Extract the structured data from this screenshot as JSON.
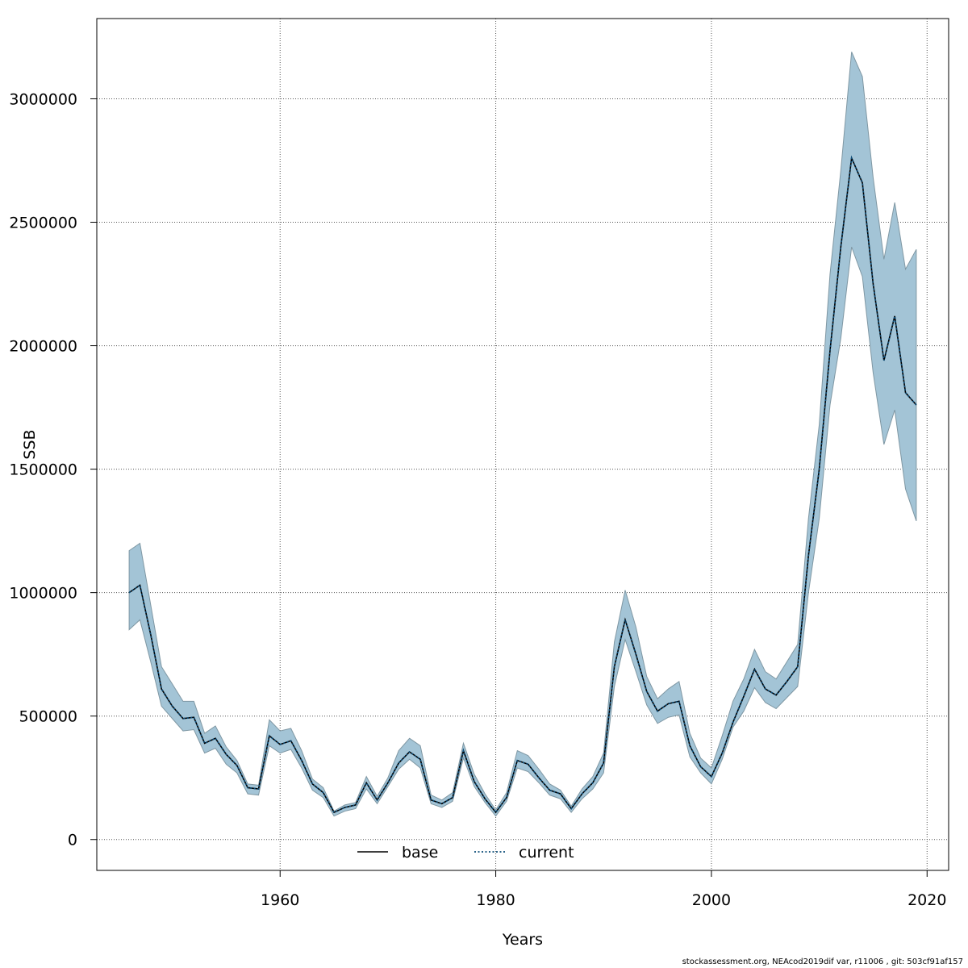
{
  "footer": "stockassessment.org, NEAcod2019dif  var, r11006 , git: 503cf91af157",
  "chart_data": {
    "type": "line",
    "title": "",
    "xlabel": "Years",
    "ylabel": "SSB",
    "xlim": [
      1943,
      2022
    ],
    "ylim": [
      -125000,
      3325000
    ],
    "x_ticks": [
      1960,
      1980,
      2000,
      2020
    ],
    "y_ticks": [
      0,
      500000,
      1000000,
      1500000,
      2000000,
      2500000,
      3000000
    ],
    "y_tick_labels": [
      "0",
      "500000",
      "1000000",
      "1500000",
      "2000000",
      "2500000",
      "3000000"
    ],
    "grid": true,
    "legend": {
      "position": "bottom-center",
      "entries": [
        "base",
        "current"
      ]
    },
    "colors": {
      "band": "#a3c4d6",
      "band_edge": "#7f97a3",
      "base": "#000000",
      "current": "#0f4f7a"
    },
    "x": [
      1946,
      1947,
      1948,
      1949,
      1950,
      1951,
      1952,
      1953,
      1954,
      1955,
      1956,
      1957,
      1958,
      1959,
      1960,
      1961,
      1962,
      1963,
      1964,
      1965,
      1966,
      1967,
      1968,
      1969,
      1970,
      1971,
      1972,
      1973,
      1974,
      1975,
      1976,
      1977,
      1978,
      1979,
      1980,
      1981,
      1982,
      1983,
      1984,
      1985,
      1986,
      1987,
      1988,
      1989,
      1990,
      1991,
      1992,
      1993,
      1994,
      1995,
      1996,
      1997,
      1998,
      1999,
      2000,
      2001,
      2002,
      2003,
      2004,
      2005,
      2006,
      2007,
      2008,
      2009,
      2010,
      2011,
      2012,
      2013,
      2014,
      2015,
      2016,
      2017,
      2018,
      2019
    ],
    "series": [
      {
        "name": "base",
        "values": [
          1000000,
          1030000,
          830000,
          610000,
          540000,
          490000,
          495000,
          390000,
          410000,
          345000,
          300000,
          210000,
          205000,
          420000,
          385000,
          400000,
          320000,
          225000,
          190000,
          110000,
          130000,
          140000,
          230000,
          160000,
          230000,
          310000,
          355000,
          325000,
          160000,
          145000,
          170000,
          360000,
          235000,
          165000,
          110000,
          170000,
          320000,
          305000,
          250000,
          200000,
          185000,
          125000,
          185000,
          230000,
          310000,
          700000,
          890000,
          750000,
          600000,
          520000,
          550000,
          560000,
          380000,
          295000,
          255000,
          350000,
          475000,
          580000,
          690000,
          610000,
          585000,
          640000,
          700000,
          1150000,
          1500000,
          1980000,
          2400000,
          2760000,
          2660000,
          2250000,
          1940000,
          2120000,
          1810000,
          1760000
        ]
      },
      {
        "name": "current",
        "values": [
          1000000,
          1030000,
          830000,
          610000,
          540000,
          490000,
          495000,
          390000,
          410000,
          345000,
          300000,
          210000,
          205000,
          420000,
          385000,
          400000,
          320000,
          225000,
          190000,
          110000,
          130000,
          140000,
          230000,
          160000,
          230000,
          310000,
          355000,
          325000,
          160000,
          145000,
          170000,
          360000,
          235000,
          165000,
          110000,
          170000,
          320000,
          305000,
          250000,
          200000,
          185000,
          125000,
          185000,
          230000,
          310000,
          700000,
          890000,
          750000,
          600000,
          520000,
          550000,
          560000,
          380000,
          295000,
          255000,
          350000,
          475000,
          580000,
          690000,
          610000,
          585000,
          640000,
          700000,
          1150000,
          1500000,
          1980000,
          2400000,
          2760000,
          2660000,
          2250000,
          1940000,
          2120000,
          1810000,
          1760000
        ]
      }
    ],
    "ci_upper": [
      1170000,
      1200000,
      950000,
      700000,
      630000,
      560000,
      560000,
      430000,
      460000,
      375000,
      320000,
      225000,
      220000,
      485000,
      440000,
      450000,
      360000,
      245000,
      210000,
      115000,
      140000,
      150000,
      255000,
      175000,
      250000,
      360000,
      410000,
      380000,
      180000,
      160000,
      190000,
      390000,
      265000,
      185000,
      120000,
      190000,
      360000,
      340000,
      285000,
      225000,
      200000,
      135000,
      205000,
      255000,
      350000,
      800000,
      1010000,
      860000,
      660000,
      570000,
      610000,
      640000,
      430000,
      330000,
      290000,
      420000,
      560000,
      650000,
      770000,
      680000,
      650000,
      720000,
      790000,
      1300000,
      1680000,
      2290000,
      2710000,
      3190000,
      3090000,
      2680000,
      2350000,
      2580000,
      2310000,
      2390000
    ],
    "ci_lower": [
      850000,
      890000,
      720000,
      540000,
      490000,
      440000,
      445000,
      350000,
      370000,
      305000,
      270000,
      185000,
      180000,
      380000,
      350000,
      365000,
      290000,
      200000,
      170000,
      95000,
      115000,
      125000,
      205000,
      145000,
      215000,
      285000,
      325000,
      290000,
      145000,
      130000,
      155000,
      330000,
      215000,
      150000,
      95000,
      155000,
      290000,
      275000,
      230000,
      180000,
      165000,
      110000,
      165000,
      205000,
      270000,
      620000,
      810000,
      680000,
      545000,
      470000,
      495000,
      505000,
      335000,
      270000,
      225000,
      325000,
      455000,
      520000,
      615000,
      555000,
      530000,
      575000,
      620000,
      1000000,
      1300000,
      1760000,
      2030000,
      2400000,
      2280000,
      1890000,
      1600000,
      1740000,
      1420000,
      1290000
    ]
  }
}
